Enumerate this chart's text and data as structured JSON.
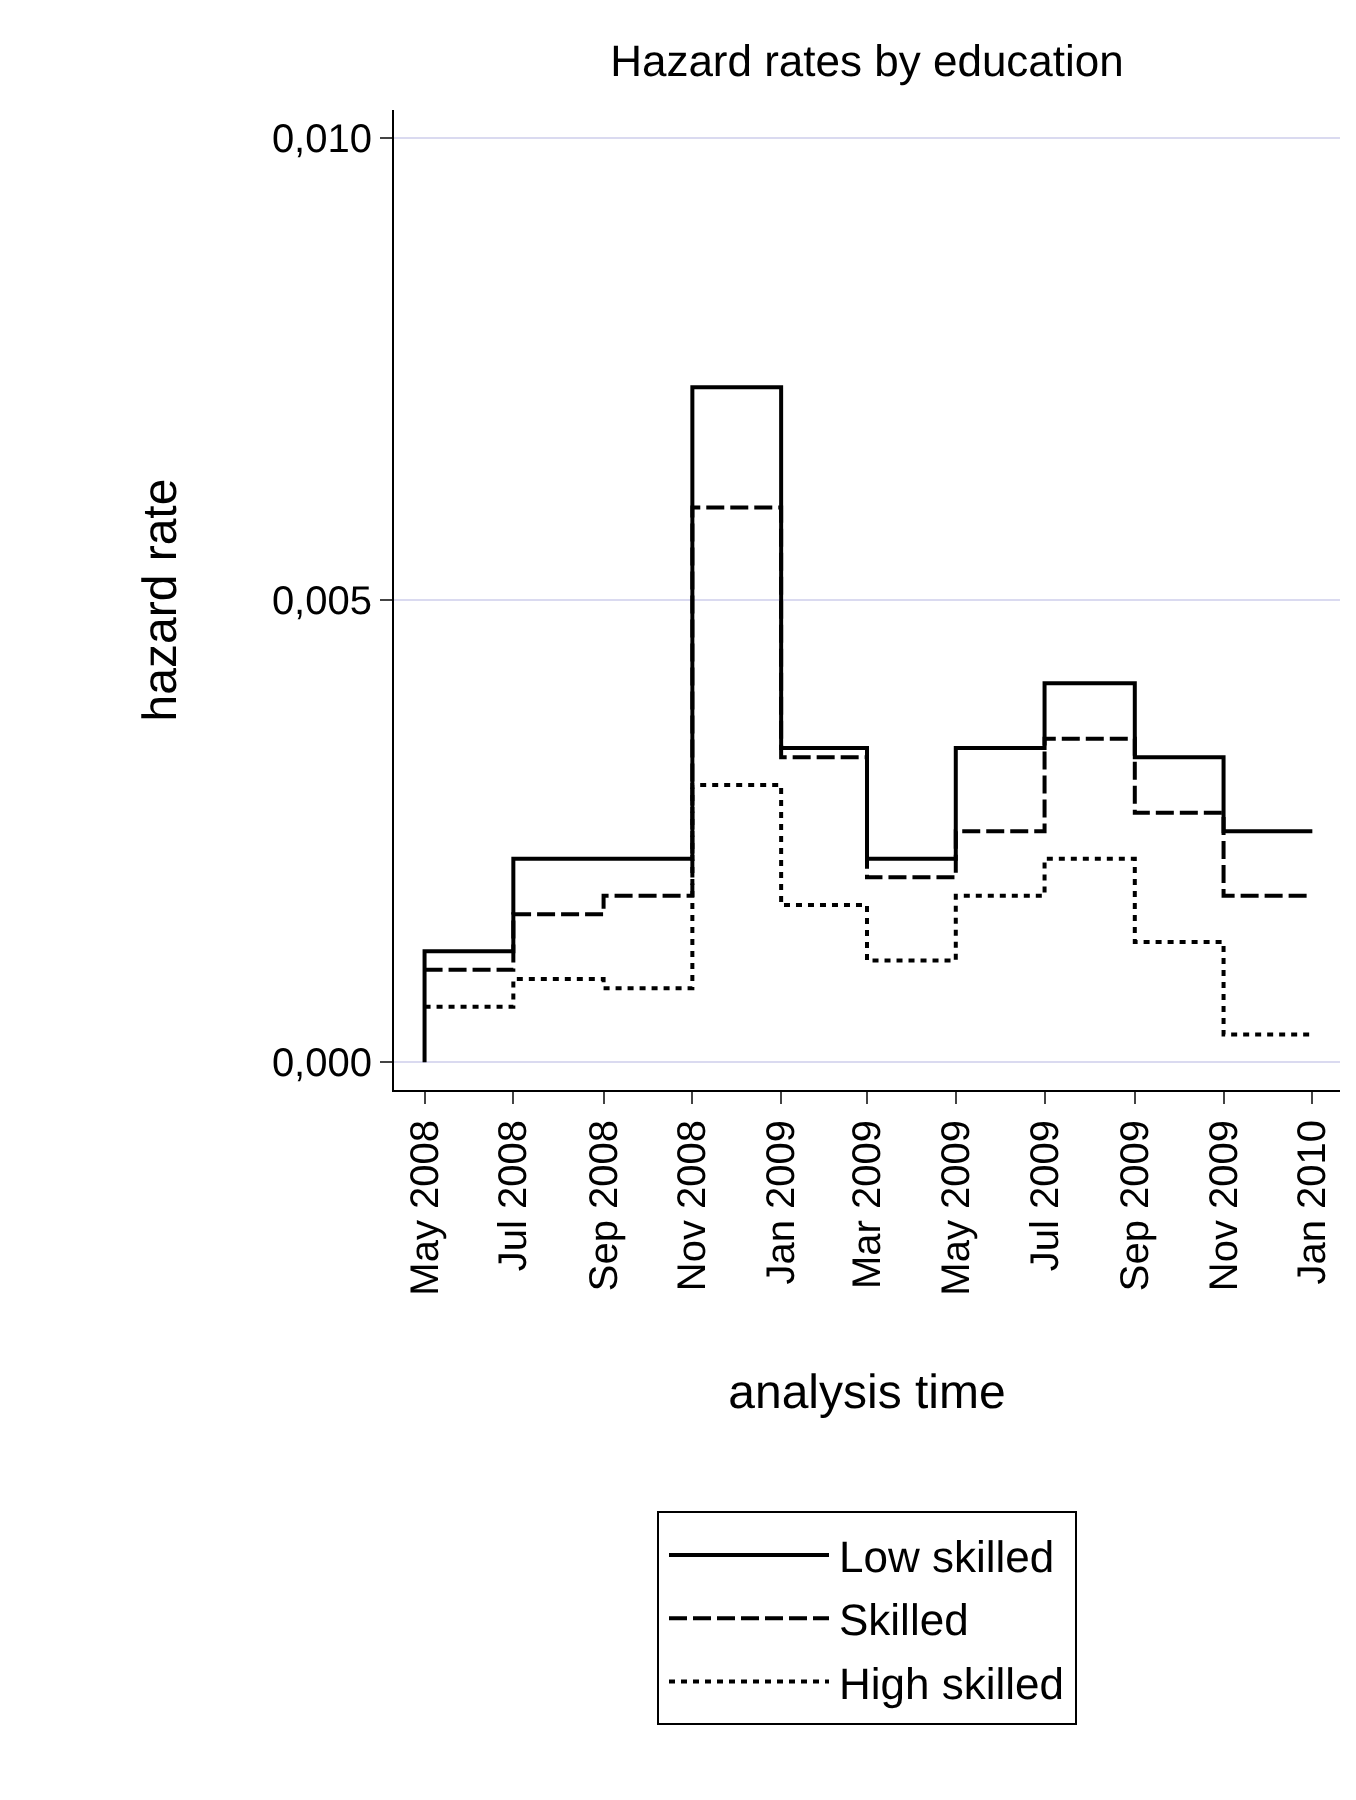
{
  "chart_data": {
    "type": "step",
    "title": "Hazard rates by education",
    "xlabel": "analysis time",
    "ylabel": "hazard rate",
    "x": [
      "2008-05",
      "2008-07",
      "2008-09",
      "2008-11",
      "2009-01",
      "2009-03",
      "2009-05",
      "2009-07",
      "2009-09",
      "2009-11",
      "2010-01"
    ],
    "series": [
      {
        "name": "Low skilled",
        "color": "#000000",
        "line_style": "solid",
        "x": [
          "2008-05",
          "2008-05",
          "2008-07",
          "2008-09",
          "2008-11",
          "2009-01",
          "2009-03",
          "2009-05",
          "2009-07",
          "2009-09",
          "2009-11",
          "2010-01"
        ],
        "values": [
          0,
          0.0012,
          0.0022,
          0.0022,
          0.0073,
          0.0034,
          0.0022,
          0.0034,
          0.0041,
          0.0033,
          0.0025,
          0.0025
        ]
      },
      {
        "name": "Skilled",
        "color": "#000000",
        "line_style": "dashed",
        "values": [
          0.001,
          0.0016,
          0.0018,
          0.006,
          0.0033,
          0.002,
          0.0025,
          0.0035,
          0.0027,
          0.0018,
          0.0018
        ]
      },
      {
        "name": "High skilled",
        "color": "#000000",
        "line_style": "dotted",
        "values": [
          0.0006,
          0.0009,
          0.0008,
          0.003,
          0.0017,
          0.0011,
          0.0018,
          0.0022,
          0.0013,
          0.0003,
          0.0003
        ]
      }
    ],
    "xlim": [
      "2008-04-10",
      "2010-01-20"
    ],
    "xticks": [
      {
        "value": "2008-05",
        "label": "May 2008"
      },
      {
        "value": "2008-07",
        "label": "Jul 2008"
      },
      {
        "value": "2008-09",
        "label": "Sep 2008"
      },
      {
        "value": "2008-11",
        "label": "Nov 2008"
      },
      {
        "value": "2009-01",
        "label": "Jan 2009"
      },
      {
        "value": "2009-03",
        "label": "Mar 2009"
      },
      {
        "value": "2009-05",
        "label": "May 2009"
      },
      {
        "value": "2009-07",
        "label": "Jul 2009"
      },
      {
        "value": "2009-09",
        "label": "Sep 2009"
      },
      {
        "value": "2009-11",
        "label": "Nov 2009"
      },
      {
        "value": "2010-01",
        "label": "Jan 2010"
      }
    ],
    "ylim": [
      -0.0003,
      0.0103
    ],
    "yticks": [
      {
        "value": 0,
        "label": "0,000"
      },
      {
        "value": 0.005,
        "label": "0,005"
      },
      {
        "value": 0.01,
        "label": "0,010"
      }
    ],
    "grid": "y",
    "legend": "bottom"
  }
}
